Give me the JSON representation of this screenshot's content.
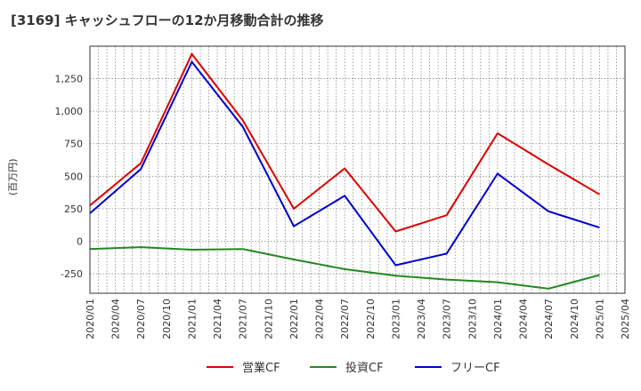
{
  "chart_data": {
    "type": "line",
    "title": "[3169]  キャッシュフローの12か月移動合計の推移",
    "ylabel": "(百万円)",
    "xlabel": "",
    "ylim": [
      -400,
      1500
    ],
    "yticks": [
      -250,
      0,
      250,
      500,
      750,
      1000,
      1250
    ],
    "ytick_labels": [
      "-250",
      "0",
      "250",
      "500",
      "750",
      "1,000",
      "1,250"
    ],
    "categories": [
      "2020/01",
      "2020/04",
      "2020/07",
      "2020/10",
      "2021/01",
      "2021/04",
      "2021/07",
      "2021/10",
      "2022/01",
      "2022/04",
      "2022/07",
      "2022/10",
      "2023/01",
      "2023/04",
      "2023/07",
      "2023/10",
      "2024/01",
      "2024/04",
      "2024/07",
      "2024/10",
      "2025/01",
      "2025/04"
    ],
    "grid": true,
    "legend_position": "bottom",
    "series": [
      {
        "name": "営業CF",
        "color": "#dd0000",
        "points": [
          [
            "2020/01",
            275
          ],
          [
            "2020/07",
            600
          ],
          [
            "2021/01",
            1440
          ],
          [
            "2021/07",
            930
          ],
          [
            "2022/01",
            250
          ],
          [
            "2022/07",
            560
          ],
          [
            "2023/01",
            75
          ],
          [
            "2023/07",
            200
          ],
          [
            "2024/01",
            830
          ],
          [
            "2024/07",
            590
          ],
          [
            "2025/01",
            360
          ]
        ]
      },
      {
        "name": "投資CF",
        "color": "#228822",
        "points": [
          [
            "2020/01",
            -60
          ],
          [
            "2020/07",
            -45
          ],
          [
            "2021/01",
            -65
          ],
          [
            "2021/07",
            -60
          ],
          [
            "2022/01",
            -140
          ],
          [
            "2022/07",
            -215
          ],
          [
            "2023/01",
            -265
          ],
          [
            "2023/07",
            -295
          ],
          [
            "2024/01",
            -315
          ],
          [
            "2024/07",
            -365
          ],
          [
            "2025/01",
            -260
          ]
        ]
      },
      {
        "name": "フリーCF",
        "color": "#0000cc",
        "points": [
          [
            "2020/01",
            215
          ],
          [
            "2020/07",
            555
          ],
          [
            "2021/01",
            1380
          ],
          [
            "2021/07",
            880
          ],
          [
            "2022/01",
            115
          ],
          [
            "2022/07",
            350
          ],
          [
            "2023/01",
            -185
          ],
          [
            "2023/07",
            -95
          ],
          [
            "2024/01",
            520
          ],
          [
            "2024/07",
            230
          ],
          [
            "2025/01",
            105
          ]
        ]
      }
    ]
  }
}
